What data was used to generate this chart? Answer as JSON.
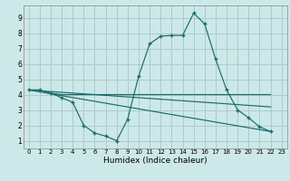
{
  "xlabel": "Humidex (Indice chaleur)",
  "ylabel": "",
  "xlim": [
    -0.5,
    23.5
  ],
  "ylim": [
    0.5,
    9.8
  ],
  "xticks": [
    0,
    1,
    2,
    3,
    4,
    5,
    6,
    7,
    8,
    9,
    10,
    11,
    12,
    13,
    14,
    15,
    16,
    17,
    18,
    19,
    20,
    21,
    22,
    23
  ],
  "yticks": [
    1,
    2,
    3,
    4,
    5,
    6,
    7,
    8,
    9
  ],
  "background_color": "#cde8e8",
  "grid_color": "#aacccc",
  "line_color": "#1a6b6b",
  "series_main": {
    "x": [
      0,
      1,
      2,
      3,
      4,
      5,
      6,
      7,
      8,
      9,
      10,
      11,
      12,
      13,
      14,
      15,
      16,
      17,
      18,
      19,
      20,
      21,
      22
    ],
    "y": [
      4.3,
      4.3,
      4.1,
      3.8,
      3.5,
      2.0,
      1.5,
      1.3,
      1.0,
      2.4,
      5.2,
      7.3,
      7.8,
      7.85,
      7.85,
      9.3,
      8.6,
      6.3,
      4.3,
      3.0,
      2.5,
      1.9,
      1.6
    ]
  },
  "series_flat": {
    "x": [
      0,
      1,
      2,
      3,
      22
    ],
    "y": [
      4.3,
      4.3,
      4.1,
      4.0,
      4.0
    ]
  },
  "series_line1": {
    "x": [
      0,
      22
    ],
    "y": [
      4.3,
      1.6
    ]
  },
  "series_line2": {
    "x": [
      0,
      22
    ],
    "y": [
      4.3,
      3.2
    ]
  }
}
